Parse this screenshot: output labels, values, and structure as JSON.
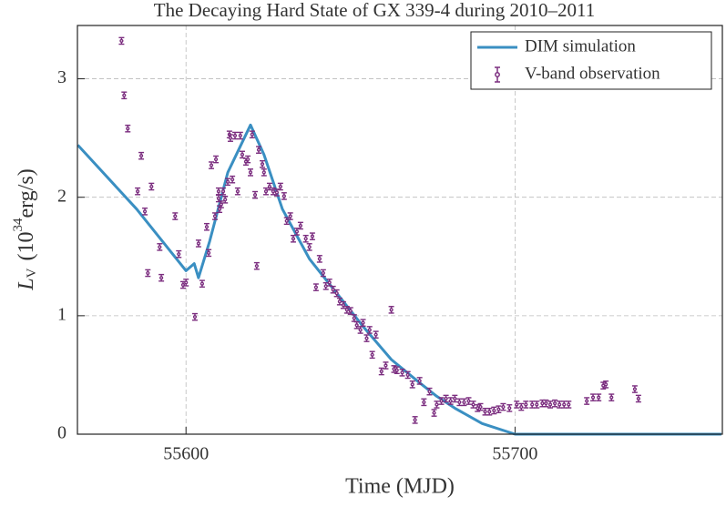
{
  "chart_data": {
    "type": "scatter",
    "title": "The Decaying Hard State of GX 339-4 during 2010–2011",
    "xlabel": "Time (MJD)",
    "ylabel": {
      "symbol": "L",
      "subscript": "V",
      "open": "(10",
      "exponent": "34",
      "unit": "erg/s)"
    },
    "xlim": [
      55567,
      55763
    ],
    "ylim": [
      0,
      3.45
    ],
    "xticks": [
      55600,
      55700
    ],
    "yticks": [
      0,
      1,
      2,
      3
    ],
    "grid": true,
    "legend": "upper right",
    "series": [
      {
        "name": "DIM simulation",
        "type": "line",
        "color": "#3a8fc2",
        "x": [
          55567.1,
          55585.0,
          55600.0,
          55602.5,
          55603.8,
          55607.2,
          55612.7,
          55619.6,
          55623.7,
          55629.3,
          55637.5,
          55645.8,
          55654.1,
          55662.4,
          55670.7,
          55676.2,
          55681.7,
          55690.0,
          55700.0,
          55762.7
        ],
        "values": [
          2.44,
          1.9,
          1.38,
          1.44,
          1.32,
          1.63,
          2.21,
          2.61,
          2.36,
          1.9,
          1.48,
          1.19,
          0.9,
          0.63,
          0.44,
          0.32,
          0.22,
          0.09,
          0,
          0
        ]
      },
      {
        "name": "V-band observation",
        "type": "errorbar",
        "color": "#7b2d7f",
        "error": 0.02,
        "x": [
          55580.4,
          55581.2,
          55582.3,
          55585.3,
          55586.4,
          55587.5,
          55588.4,
          55589.5,
          55592.0,
          55592.5,
          55596.7,
          55597.8,
          55599.1,
          55600.0,
          55602.7,
          55603.8,
          55604.9,
          55606.3,
          55606.9,
          55607.7,
          55608.8,
          55609.1,
          55609.9,
          55609.9,
          55610.2,
          55610.7,
          55611.3,
          55611.9,
          55612.7,
          55613.2,
          55613.5,
          55614.1,
          55614.9,
          55615.7,
          55616.5,
          55617.1,
          55618.2,
          55618.8,
          55619.6,
          55620.1,
          55621.0,
          55621.5,
          55622.1,
          55623.2,
          55623.7,
          55624.3,
          55625.4,
          55626.5,
          55627.6,
          55628.7,
          55629.8,
          55630.6,
          55631.7,
          55632.6,
          55633.7,
          55634.8,
          55636.4,
          55637.5,
          55638.4,
          55639.5,
          55640.6,
          55641.7,
          55642.5,
          55643.6,
          55644.7,
          55645.8,
          55646.7,
          55647.8,
          55648.9,
          55650.0,
          55651.1,
          55651.9,
          55653.0,
          55653.8,
          55654.9,
          55655.8,
          55656.6,
          55657.7,
          55659.4,
          55660.7,
          55662.4,
          55663.2,
          55664.1,
          55665.7,
          55667.4,
          55668.8,
          55669.6,
          55671.0,
          55672.3,
          55674.0,
          55675.4,
          55676.2,
          55677.6,
          55679.0,
          55680.4,
          55681.7,
          55683.1,
          55684.5,
          55685.9,
          55687.3,
          55688.6,
          55689.5,
          55690.9,
          55692.2,
          55693.6,
          55695.0,
          55696.4,
          55698.3,
          55700.5,
          55701.9,
          55703.3,
          55705.2,
          55706.6,
          55708.3,
          55709.4,
          55710.7,
          55712.1,
          55713.5,
          55714.9,
          55716.3,
          55721.8,
          55723.7,
          55725.4,
          55726.8,
          55727.6,
          55729.3,
          55736.4,
          55737.5
        ],
        "values": [
          3.32,
          2.86,
          2.58,
          2.05,
          2.35,
          1.88,
          1.36,
          2.09,
          1.58,
          1.32,
          1.84,
          1.52,
          1.26,
          1.28,
          0.99,
          1.61,
          1.27,
          1.75,
          1.53,
          2.27,
          1.84,
          2.32,
          2.05,
          1.99,
          1.9,
          1.94,
          2.05,
          1.98,
          2.13,
          2.53,
          2.5,
          2.15,
          2.52,
          2.05,
          2.52,
          2.36,
          2.3,
          2.32,
          2.21,
          2.53,
          2.02,
          1.42,
          2.4,
          2.28,
          2.21,
          2.05,
          2.09,
          2.05,
          2.04,
          2.09,
          2.01,
          1.8,
          1.84,
          1.65,
          1.71,
          1.76,
          1.65,
          1.58,
          1.67,
          1.24,
          1.48,
          1.36,
          1.25,
          1.28,
          1.22,
          1.19,
          1.12,
          1.09,
          1.05,
          1.04,
          0.98,
          0.92,
          0.88,
          0.94,
          0.81,
          0.88,
          0.67,
          0.84,
          0.53,
          0.58,
          1.05,
          0.55,
          0.54,
          0.52,
          0.5,
          0.42,
          0.12,
          0.45,
          0.27,
          0.36,
          0.18,
          0.25,
          0.28,
          0.3,
          0.28,
          0.3,
          0.27,
          0.27,
          0.28,
          0.25,
          0.22,
          0.23,
          0.19,
          0.19,
          0.2,
          0.21,
          0.23,
          0.22,
          0.25,
          0.23,
          0.25,
          0.25,
          0.25,
          0.26,
          0.26,
          0.25,
          0.26,
          0.25,
          0.25,
          0.25,
          0.28,
          0.31,
          0.31,
          0.41,
          0.42,
          0.31,
          0.38,
          0.3
        ]
      }
    ]
  }
}
